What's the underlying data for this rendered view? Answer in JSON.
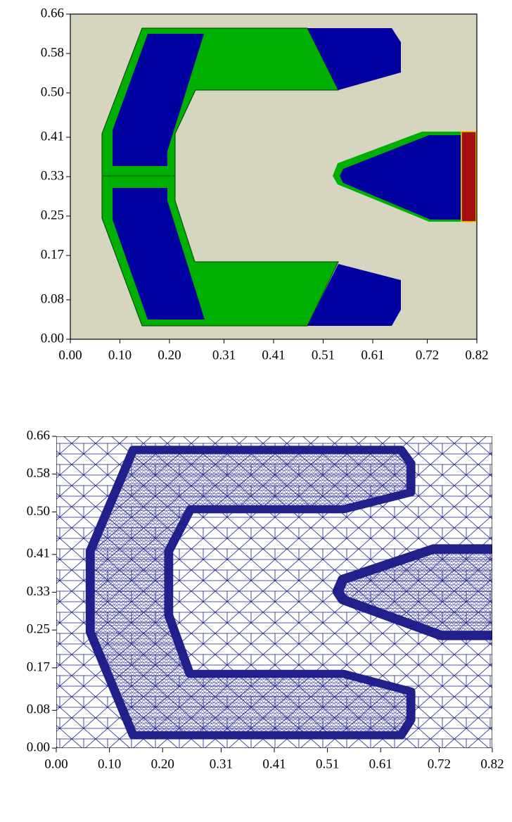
{
  "chart_data": [
    {
      "type": "region",
      "xlim": [
        0,
        0.82
      ],
      "ylim": [
        0,
        0.66
      ],
      "xticks": [
        {
          "value": 0,
          "label": "0.00"
        },
        {
          "value": 0.1,
          "label": "0.10"
        },
        {
          "value": 0.2,
          "label": "0.20"
        },
        0.31,
        0.41,
        0.51,
        0.61,
        0.72,
        0.82
      ],
      "yticks": [
        {
          "value": 0,
          "label": "0.00"
        },
        0.08,
        0.17,
        0.25,
        0.33,
        0.41,
        {
          "value": 0.5,
          "label": "0.50"
        },
        0.58,
        0.66
      ]
    },
    {
      "type": "mesh",
      "xlim": [
        0,
        0.82
      ],
      "ylim": [
        0,
        0.66
      ],
      "xticks": [
        {
          "value": 0,
          "label": "0.00"
        },
        {
          "value": 0.1,
          "label": "0.10"
        },
        {
          "value": 0.2,
          "label": "0.20"
        },
        0.31,
        0.41,
        0.51,
        0.61,
        0.72,
        0.82
      ],
      "yticks": [
        {
          "value": 0,
          "label": "0.00"
        },
        0.08,
        0.17,
        0.25,
        0.33,
        0.41,
        {
          "value": 0.5,
          "label": "0.50"
        },
        0.58,
        0.66
      ]
    }
  ]
}
